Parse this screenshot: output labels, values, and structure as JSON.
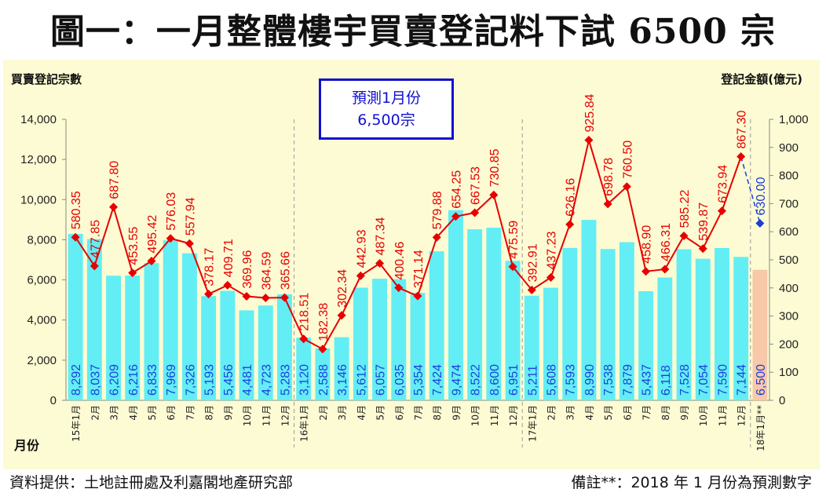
{
  "title": "圖一：一月整體樓宇買賣登記料下試 6500 宗",
  "source_text": "資料提供：土地註冊處及利嘉閣地產研究部",
  "note_text": "備註**：2018 年 1 月份為預測數字",
  "prediction_box": {
    "line1": "預測1月份",
    "line2": "6,500宗"
  },
  "chart_data": {
    "type": "bar+line",
    "title": "圖一：一月整體樓宇買賣登記料下試 6500 宗",
    "xlabel": "月份",
    "ylabel": "買賣登記宗數",
    "y2label": "登記金額(億元)",
    "ylim": [
      0,
      14000
    ],
    "y2lim": [
      0,
      1000
    ],
    "yticks": [
      "0",
      "2,000",
      "4,000",
      "6,000",
      "8,000",
      "10,000",
      "12,000",
      "14,000"
    ],
    "y2ticks": [
      "0",
      "100",
      "200",
      "300",
      "400",
      "500",
      "600",
      "700",
      "800",
      "900",
      "1,000"
    ],
    "categories": [
      "15年1月",
      "2月",
      "3月",
      "4月",
      "5月",
      "6月",
      "7月",
      "8月",
      "9月",
      "10月",
      "11月",
      "12月",
      "16年1月",
      "2月",
      "3月",
      "4月",
      "5月",
      "6月",
      "7月",
      "8月",
      "9月",
      "10月",
      "11月",
      "12月",
      "17年1月",
      "2月",
      "3月",
      "4月",
      "5月",
      "6月",
      "7月",
      "8月",
      "9月",
      "10月",
      "11月",
      "12月",
      "18年1月**"
    ],
    "registrations": [
      8292,
      8037,
      6209,
      6216,
      6833,
      7969,
      7326,
      5193,
      5456,
      4481,
      4723,
      5283,
      3120,
      2588,
      3146,
      5612,
      6057,
      6035,
      5354,
      7424,
      9474,
      8522,
      8600,
      6951,
      5211,
      5608,
      7593,
      8990,
      7538,
      7879,
      5437,
      6118,
      7528,
      7054,
      7590,
      7144,
      6500
    ],
    "registration_labels": [
      "8,292",
      "8,037",
      "6,209",
      "6,216",
      "6,833",
      "7,969",
      "7,326",
      "5,193",
      "5,456",
      "4,481",
      "4,723",
      "5,283",
      "3,120",
      "2,588",
      "3,146",
      "5,612",
      "6,057",
      "6,035",
      "5,354",
      "7,424",
      "9,474",
      "8,522",
      "8,600",
      "6,951",
      "5,211",
      "5,608",
      "7,593",
      "8,990",
      "7,538",
      "7,879",
      "5,437",
      "6,118",
      "7,528",
      "7,054",
      "7,590",
      "7,144",
      "6,500"
    ],
    "amounts": [
      580.35,
      477.85,
      687.8,
      453.55,
      495.42,
      576.03,
      557.94,
      378.17,
      409.71,
      369.96,
      364.59,
      365.66,
      218.51,
      182.38,
      302.34,
      442.93,
      487.34,
      400.46,
      371.14,
      579.88,
      654.25,
      667.53,
      730.85,
      475.59,
      392.91,
      437.23,
      626.16,
      925.84,
      698.78,
      760.5,
      458.9,
      466.31,
      585.22,
      539.87,
      673.94,
      867.3,
      630.0
    ],
    "amount_labels": [
      "580.35",
      "477.85",
      "687.80",
      "453.55",
      "495.42",
      "576.03",
      "557.94",
      "378.17",
      "409.71",
      "369.96",
      "364.59",
      "365.66",
      "218.51",
      "182.38",
      "302.34",
      "442.93",
      "487.34",
      "400.46",
      "371.14",
      "579.88",
      "654.25",
      "667.53",
      "730.85",
      "475.59",
      "392.91",
      "437.23",
      "626.16",
      "925.84",
      "698.78",
      "760.50",
      "458.90",
      "466.31",
      "585.22",
      "539.87",
      "673.94",
      "867.30",
      "630.00"
    ],
    "forecast_index": 36,
    "colors": {
      "bar": "#62eef4",
      "forecast_bar": "#f7c9a8",
      "line": "#e60000",
      "forecast_marker": "#1a3fd6",
      "bar_label": "#1f3fe0",
      "panel": "#fdfbd3",
      "grid": "#c8c6a0"
    }
  }
}
